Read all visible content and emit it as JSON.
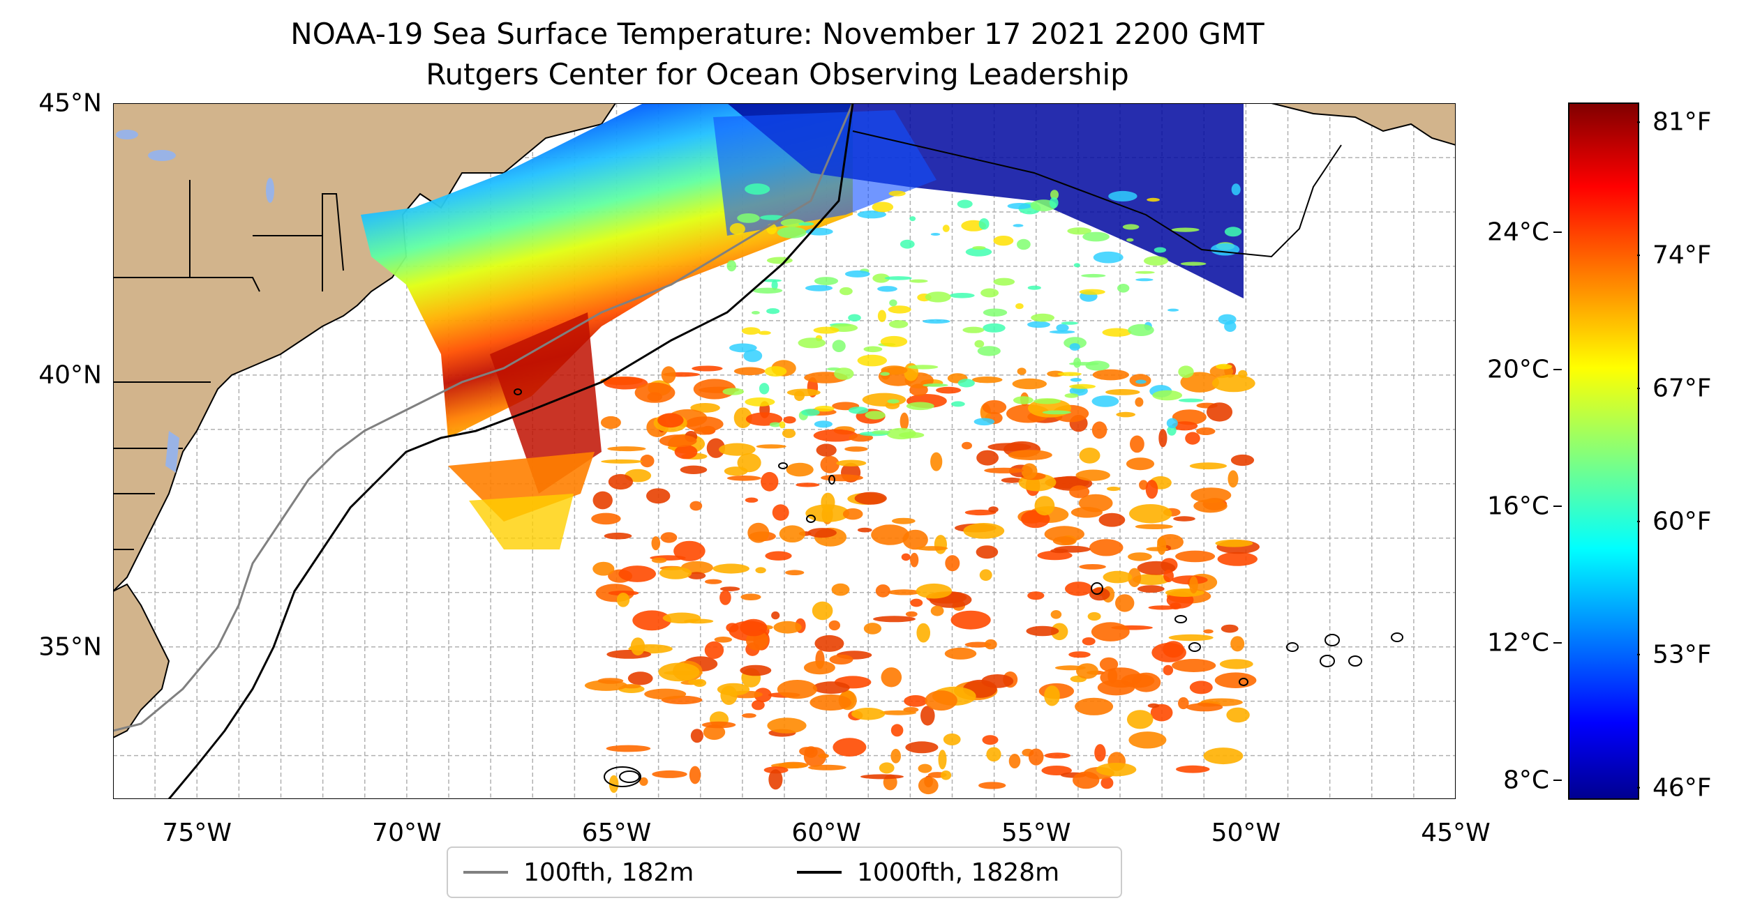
{
  "figure": {
    "title_line1": "NOAA-19 Sea Surface Temperature: November 17 2021 2200 GMT",
    "title_line2": "Rutgers Center for Ocean Observing Leadership"
  },
  "map": {
    "lon_range": [
      -77,
      -45
    ],
    "lat_range": [
      32.2,
      45
    ],
    "x_ticks": [
      {
        "lon": -75,
        "label": "75°W"
      },
      {
        "lon": -70,
        "label": "70°W"
      },
      {
        "lon": -65,
        "label": "65°W"
      },
      {
        "lon": -60,
        "label": "60°W"
      },
      {
        "lon": -55,
        "label": "55°W"
      },
      {
        "lon": -50,
        "label": "50°W"
      },
      {
        "lon": -45,
        "label": "45°W"
      }
    ],
    "y_ticks": [
      {
        "lat": 45,
        "label": "45°N"
      },
      {
        "lat": 40,
        "label": "40°N"
      },
      {
        "lat": 35,
        "label": "35°N"
      }
    ],
    "grid": "dashed, 1 degree",
    "land_color": "#d2b48c",
    "lake_color": "#99b3e6"
  },
  "colorbar": {
    "colormap": "jet",
    "celsius_ticks": [
      {
        "value": 8,
        "label": "8°C"
      },
      {
        "value": 12,
        "label": "12°C"
      },
      {
        "value": 16,
        "label": "16°C"
      },
      {
        "value": 20,
        "label": "20°C"
      },
      {
        "value": 24,
        "label": "24°C"
      }
    ],
    "fahrenheit_ticks": [
      {
        "value": 46,
        "label": "46°F"
      },
      {
        "value": 53,
        "label": "53°F"
      },
      {
        "value": 60,
        "label": "60°F"
      },
      {
        "value": 67,
        "label": "67°F"
      },
      {
        "value": 74,
        "label": "74°F"
      },
      {
        "value": 81,
        "label": "81°F"
      }
    ],
    "f_range": [
      45.4,
      82.0
    ]
  },
  "legend": {
    "items": [
      {
        "label": "100fth, 182m",
        "color": "#808080"
      },
      {
        "label": "1000fth, 1828m",
        "color": "#000000"
      }
    ]
  }
}
